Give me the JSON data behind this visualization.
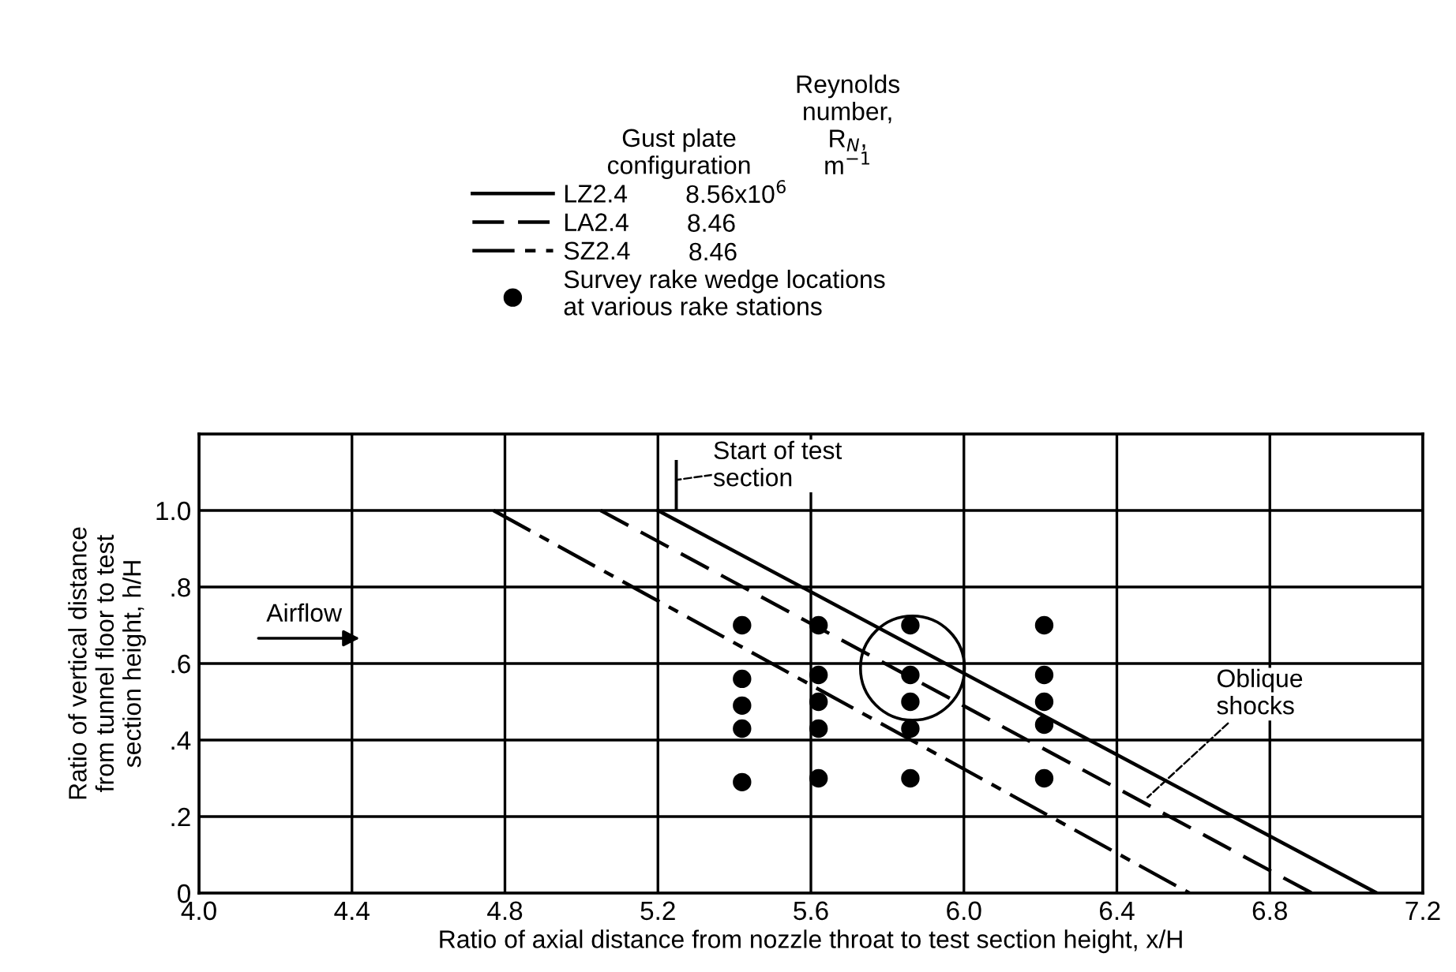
{
  "chart_data": {
    "type": "line",
    "xlabel": "Ratio of axial distance from nozzle throat to test section height, x/H",
    "ylabel": "Ratio of vertical distance\nfrom tunnel floor to test\nsection height, h/H",
    "legend_title": "Gust plate\nconfiguration",
    "xlim": [
      4.0,
      7.2
    ],
    "ylim": [
      0,
      1.2
    ],
    "xticks": [
      {
        "value": 4.0,
        "label": "4.0"
      },
      4.4,
      4.8,
      5.2,
      5.6,
      {
        "value": 6.0,
        "label": "6.0"
      },
      6.4,
      6.8,
      7.2
    ],
    "yticks": [
      0,
      {
        "value": 0.2,
        "label": ".2"
      },
      {
        "value": 0.4,
        "label": ".4"
      },
      {
        "value": 0.6,
        "label": ".6"
      },
      {
        "value": 0.8,
        "label": ".8"
      },
      {
        "value": 1.0,
        "label": "1.0"
      },
      {
        "value": 1.2,
        "label": null
      }
    ],
    "grid": true,
    "legend": "top",
    "series": [
      {
        "name": "LZ2.4",
        "line_style": "solid",
        "color": "#000000",
        "x": [
          5.2,
          7.08
        ],
        "values": [
          1.0,
          0
        ]
      },
      {
        "name": "LA2.4",
        "line_style": "dashed",
        "color": "#000000",
        "x": [
          5.05,
          6.91
        ],
        "values": [
          1.0,
          0
        ]
      },
      {
        "name": "SZ2.4",
        "line_style": "dashdot",
        "color": "#000000",
        "x": [
          4.77,
          6.59
        ],
        "values": [
          1.0,
          0
        ]
      },
      {
        "name": "Survey rake wedge locations\nat various rake stations",
        "type": "scatter",
        "marker": "circle",
        "color": "#000000",
        "x": [
          5.42,
          5.42,
          5.42,
          5.42,
          5.42,
          5.62,
          5.62,
          5.62,
          5.62,
          5.62,
          5.86,
          5.86,
          5.86,
          5.86,
          5.86,
          6.21,
          6.21,
          6.21,
          6.21,
          6.21
        ],
        "values": [
          0.7,
          0.56,
          0.49,
          0.43,
          0.29,
          0.7,
          0.57,
          0.5,
          0.43,
          0.3,
          0.7,
          0.57,
          0.5,
          0.43,
          0.3,
          0.7,
          0.57,
          0.5,
          0.44,
          0.3
        ]
      }
    ],
    "annotations": [
      "Reynolds\nnumber,\nR$_{N}$,\nm$^{−1}$",
      "8.56x10$^{6}$",
      "8.46",
      "8.46",
      "Start of test\nsection",
      "Airflow",
      {
        "text": "Oblique\nshocks",
        "x": 6.48,
        "y": 0.25
      }
    ]
  }
}
